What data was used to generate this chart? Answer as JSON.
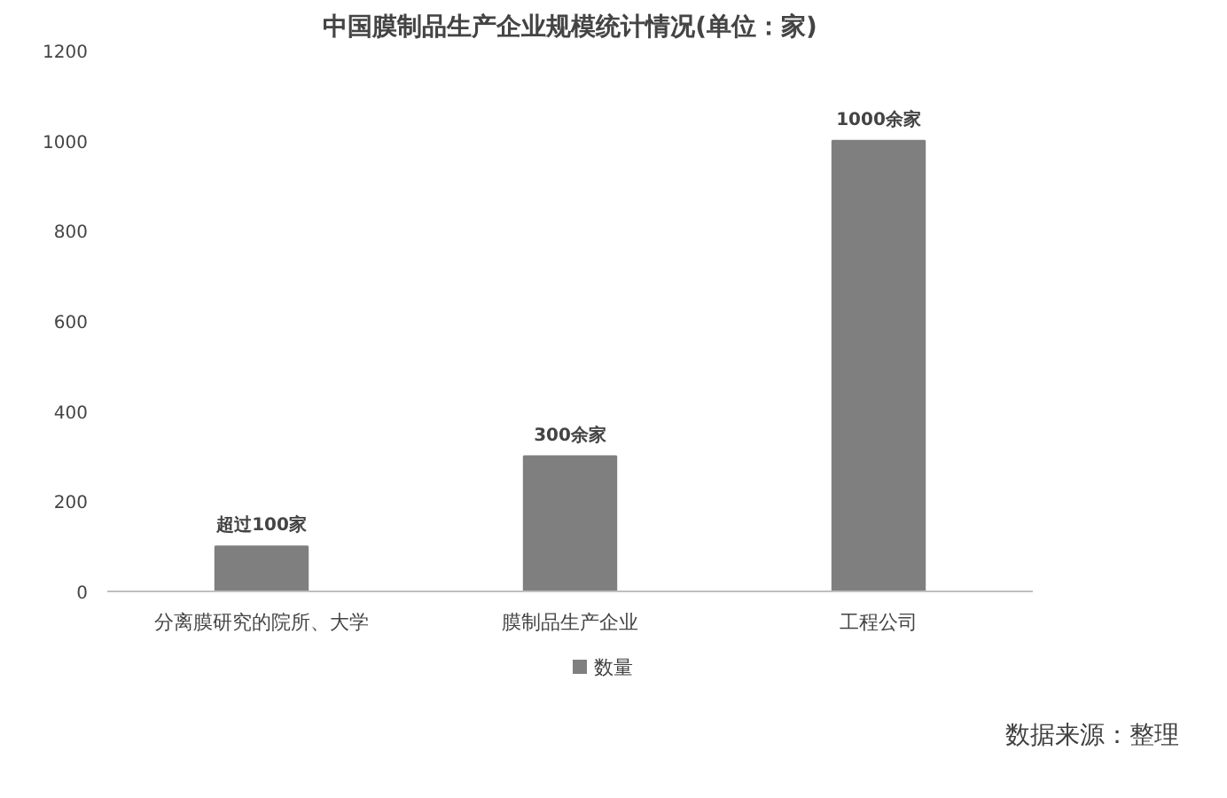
{
  "chart_data": {
    "type": "bar",
    "title": "中国膜制品生产企业规模统计情况(单位：家)",
    "categories": [
      "分离膜研究的院所、大学",
      "膜制品生产企业",
      "工程公司"
    ],
    "series": [
      {
        "name": "数量",
        "color": "#7f7f7f",
        "values": [
          100,
          300,
          1000
        ]
      }
    ],
    "value_labels": [
      "超过100家",
      "300余家",
      "1000余家"
    ],
    "ylim": [
      0,
      1200
    ],
    "yticks": [
      0,
      200,
      400,
      600,
      800,
      1000,
      1200
    ],
    "grid": false,
    "legend": "bottom",
    "annotations": [
      "数据来源：整理"
    ]
  }
}
